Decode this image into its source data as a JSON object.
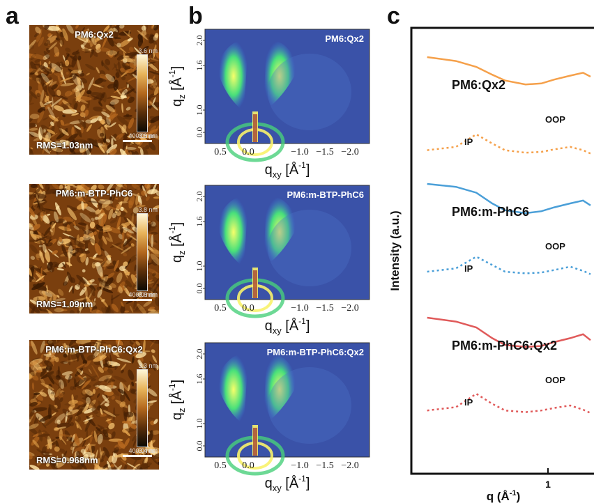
{
  "panels": {
    "a": "a",
    "b": "b",
    "c": "c"
  },
  "afm": [
    {
      "title": "PM6:Qx2",
      "rms": "RMS=1.03nm",
      "cbar_max": "3.6 nm",
      "cbar_min": "-3.8 nm",
      "scale": "400.0 nm"
    },
    {
      "title": "PM6:m-BTP-PhC6",
      "rms": "RMS=1.09nm",
      "cbar_max": "3.8 nm",
      "cbar_min": "-3.8 nm",
      "scale": "400.0 nm"
    },
    {
      "title": "PM6:m-BTP-PhC6:Qx2",
      "rms": "RMS=0.968nm",
      "cbar_max": "3.3 nm",
      "cbar_min": "-3.4 nm",
      "scale": "400.0 nm"
    }
  ],
  "giwaxs": [
    {
      "title": "PM6:Qx2"
    },
    {
      "title": "PM6:m-BTP-PhC6"
    },
    {
      "title": "PM6:m-BTP-PhC6:Qx2"
    }
  ],
  "giwaxs_axes": {
    "x_ticks": [
      "0.5",
      "0.0",
      "−1.0",
      "−1.5",
      "−2.0"
    ],
    "y_ticks": [
      "0.0",
      "1.0",
      "1.6",
      "2.0"
    ],
    "xlabel": "qxy [Å-1]",
    "ylabel": "qz [Å-1]"
  },
  "line_panel": {
    "xlabel": "q (Å-1)",
    "ylabel": "Intensity (a.u.)",
    "x_tick": "1",
    "labels": {
      "oop": "OOP",
      "ip": "IP"
    },
    "colors": {
      "PM6:Qx2": "#f5a04a",
      "PM6:m-PhC6": "#4a9fd8",
      "PM6:m-PhC6:Qx2": "#e05a5a"
    }
  },
  "chart_data": {
    "type": "line",
    "title": "",
    "xlabel": "q (Å-1)",
    "ylabel": "Intensity (a.u.)",
    "xscale": "log",
    "x": [
      0.2,
      0.3,
      0.4,
      0.5,
      0.6,
      0.8,
      1.0,
      1.2,
      1.5,
      1.8,
      2.0
    ],
    "series": [
      {
        "name": "PM6:Qx2",
        "type": "OOP",
        "values": [
          9.0,
          8.6,
          8.0,
          7.2,
          6.6,
          6.2,
          6.3,
          6.7,
          7.1,
          7.4,
          7.0
        ]
      },
      {
        "name": "PM6:Qx2",
        "type": "IP",
        "values": [
          5.2,
          5.6,
          7.1,
          6.0,
          5.2,
          4.9,
          5.0,
          5.3,
          5.6,
          5.2,
          4.8
        ]
      },
      {
        "name": "PM6:m-PhC6",
        "type": "OOP",
        "values": [
          9.0,
          8.7,
          8.1,
          7.0,
          6.3,
          6.0,
          6.2,
          6.6,
          7.0,
          7.3,
          6.8
        ]
      },
      {
        "name": "PM6:m-PhC6",
        "type": "IP",
        "values": [
          5.0,
          5.4,
          6.8,
          5.8,
          5.0,
          4.8,
          4.9,
          5.2,
          5.6,
          5.1,
          4.7
        ]
      },
      {
        "name": "PM6:m-PhC6:Qx2",
        "type": "OOP",
        "values": [
          9.0,
          8.6,
          8.0,
          6.9,
          6.2,
          6.0,
          6.1,
          6.5,
          6.9,
          7.3,
          6.7
        ]
      },
      {
        "name": "PM6:m-PhC6:Qx2",
        "type": "IP",
        "values": [
          4.9,
          5.3,
          6.9,
          5.7,
          4.9,
          4.7,
          4.9,
          5.2,
          5.5,
          5.0,
          4.6
        ]
      }
    ]
  }
}
